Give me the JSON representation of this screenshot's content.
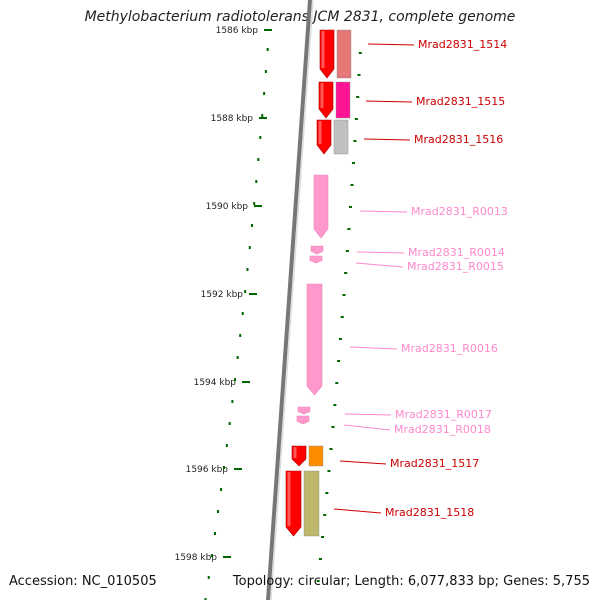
{
  "title": "Methylobacterium radiotolerans JCM 2831, complete genome",
  "accession_text": "Accession: NC_010505",
  "topology_text": "Topology: circular; Length: 6,077,833 bp; Genes: 5,755",
  "kbp_ticks": [
    {
      "label": "1586 kbp",
      "pos_kbp": 1586
    },
    {
      "label": "1588 kbp",
      "pos_kbp": 1588
    },
    {
      "label": "1590 kbp",
      "pos_kbp": 1590
    },
    {
      "label": "1592 kbp",
      "pos_kbp": 1592
    },
    {
      "label": "1594 kbp",
      "pos_kbp": 1594
    },
    {
      "label": "1596 kbp",
      "pos_kbp": 1596
    },
    {
      "label": "1598 kbp",
      "pos_kbp": 1598
    }
  ],
  "genes": [
    {
      "label": "Mrad2831_1514",
      "kind": "cds",
      "color": "#ff0000",
      "band_color": "#e87878"
    },
    {
      "label": "Mrad2831_1515",
      "kind": "cds",
      "color": "#ff0000",
      "band_color": "#ff1493"
    },
    {
      "label": "Mrad2831_1516",
      "kind": "cds",
      "color": "#ff0000",
      "band_color": "#c0c0c0"
    },
    {
      "label": "Mrad2831_R0013",
      "kind": "rna",
      "color": "#ff99cc"
    },
    {
      "label": "Mrad2831_R0014",
      "kind": "rna",
      "color": "#ff99cc"
    },
    {
      "label": "Mrad2831_R0015",
      "kind": "rna",
      "color": "#ff99cc"
    },
    {
      "label": "Mrad2831_R0016",
      "kind": "rna",
      "color": "#ff99cc"
    },
    {
      "label": "Mrad2831_R0017",
      "kind": "rna",
      "color": "#ff99cc"
    },
    {
      "label": "Mrad2831_R0018",
      "kind": "rna",
      "color": "#ff99cc"
    },
    {
      "label": "Mrad2831_1517",
      "kind": "cds",
      "color": "#ff0000",
      "band_color": "#ff8c00"
    },
    {
      "label": "Mrad2831_1518",
      "kind": "cds",
      "color": "#ff0000",
      "band_color": "#bdb76b"
    }
  ],
  "colors": {
    "cds_label": "#cc0000",
    "rna_label": "#ff88cc",
    "tick": "#006600",
    "backbone": "#777777"
  }
}
